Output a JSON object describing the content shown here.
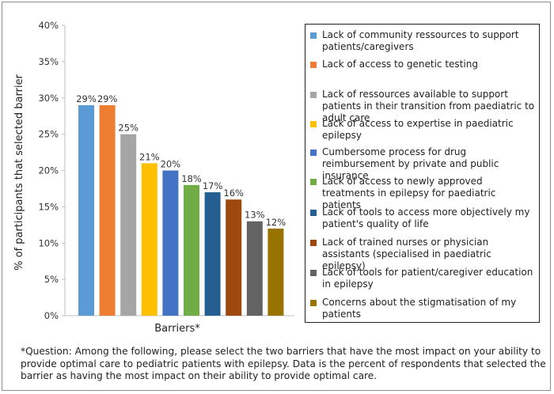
{
  "chart_data": {
    "type": "bar",
    "xlabel": "Barriers*",
    "ylabel": "% of participants that selected barrier",
    "ylim": [
      0,
      40
    ],
    "yticks": [
      "0%",
      "5%",
      "10%",
      "15%",
      "20%",
      "25%",
      "30%",
      "35%",
      "40%"
    ],
    "grid": false,
    "legend_position": "right",
    "categories": [
      "Lack of community ressources to support patients/caregivers",
      "Lack of access to genetic testing",
      "Lack of ressources available to support patients in their transition from paediatric to adult care",
      "Lack of access to expertise in paediatric epilepsy",
      "Cumbersome process for drug reimbursement by private and public insurance",
      "Lack of access to newly approved treatments in epilepsy for paediatric patients",
      "Lack of tools to access more objectively my patient's quality of life",
      "Lack of trained nurses or physician assistants (specialised in paediatric epilepsy)",
      "Lack of tools for patient/caregiver education in epilepsy",
      "Concerns about the stigmatisation of my patients"
    ],
    "values": [
      29,
      29,
      25,
      21,
      20,
      18,
      17,
      16,
      13,
      12
    ],
    "value_labels": [
      "29%",
      "29%",
      "25%",
      "21%",
      "20%",
      "18%",
      "17%",
      "16%",
      "13%",
      "12%"
    ],
    "colors": [
      "#5b9bd5",
      "#ed7d31",
      "#a5a5a5",
      "#ffc000",
      "#4472c4",
      "#70ad47",
      "#255e91",
      "#9e480e",
      "#636363",
      "#997300"
    ]
  },
  "legend_items": [
    "Lack of community ressources to support patients/caregivers",
    "Lack of access to genetic testing",
    "Lack of ressources available to support patients in their transition from paediatric to adult care",
    "Lack of access to expertise in paediatric epilepsy",
    "Cumbersome process for drug reimbursement by private and public insurance",
    "Lack of access to newly approved treatments in epilepsy for paediatric patients",
    "Lack of tools to access more objectively my patient's quality of life",
    "Lack of trained nurses or physician assistants (specialised in paediatric epilepsy)",
    "Lack of tools for patient/caregiver education in epilepsy",
    "Concerns about the stigmatisation of my patients"
  ],
  "footnote": "*Question: Among the following, please select the two barriers that have the most impact on your ability to provide optimal care to pediatric patients with epilepsy. Data is the percent of respondents that selected the barrier as having the most impact on their ability to provide optimal care."
}
